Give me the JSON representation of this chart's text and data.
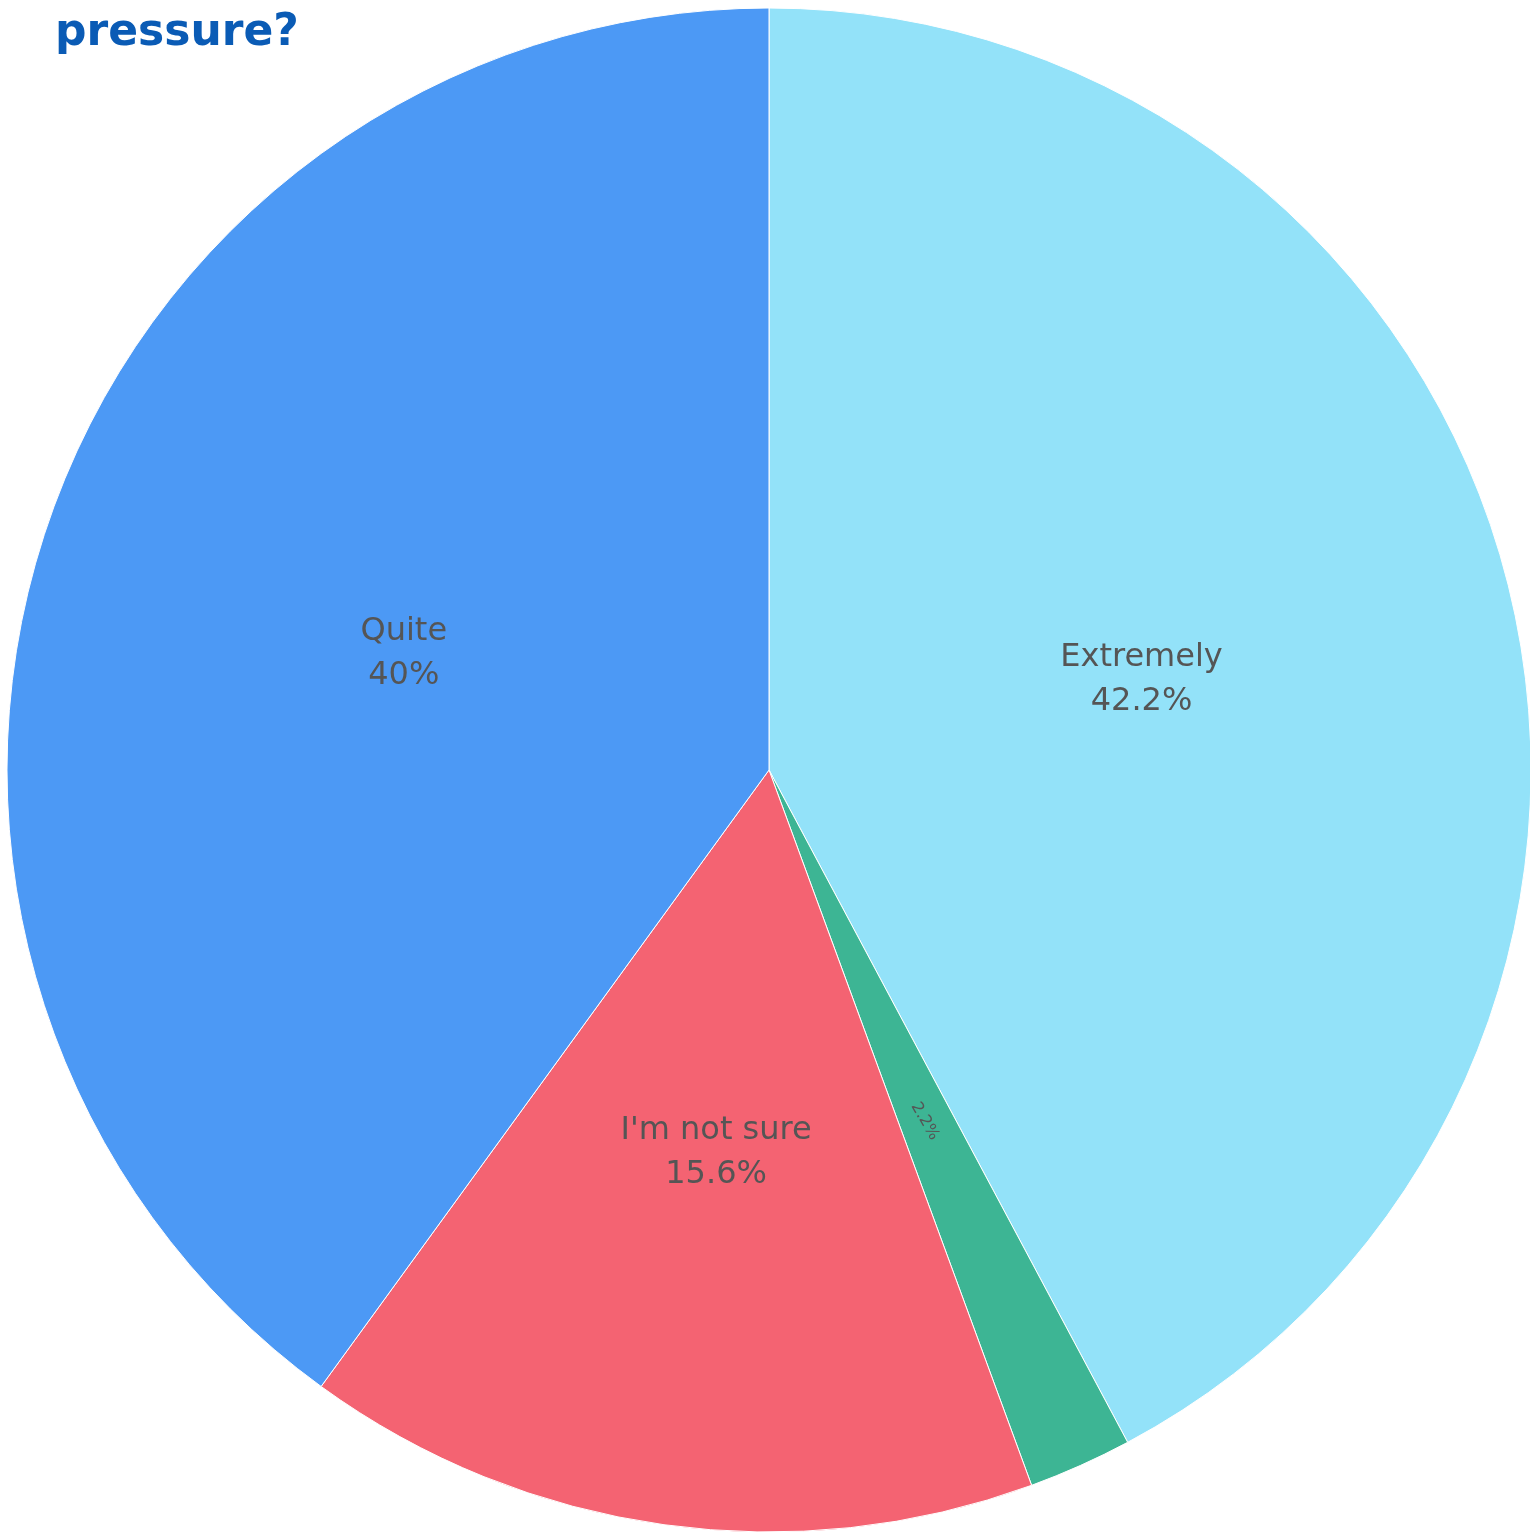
{
  "chart_data": {
    "type": "pie",
    "title": "pressure?",
    "categories": [
      "Extremely",
      null,
      "I'm not sure",
      "Quite"
    ],
    "values": [
      42.2,
      2.2,
      15.6,
      40
    ],
    "colors": [
      "#93e2f9",
      "#3db594",
      "#f46372",
      "#4c99f5"
    ],
    "value_labels": [
      "42.2%",
      "2.2%",
      "15.6%",
      "40%"
    ],
    "legend": false
  }
}
